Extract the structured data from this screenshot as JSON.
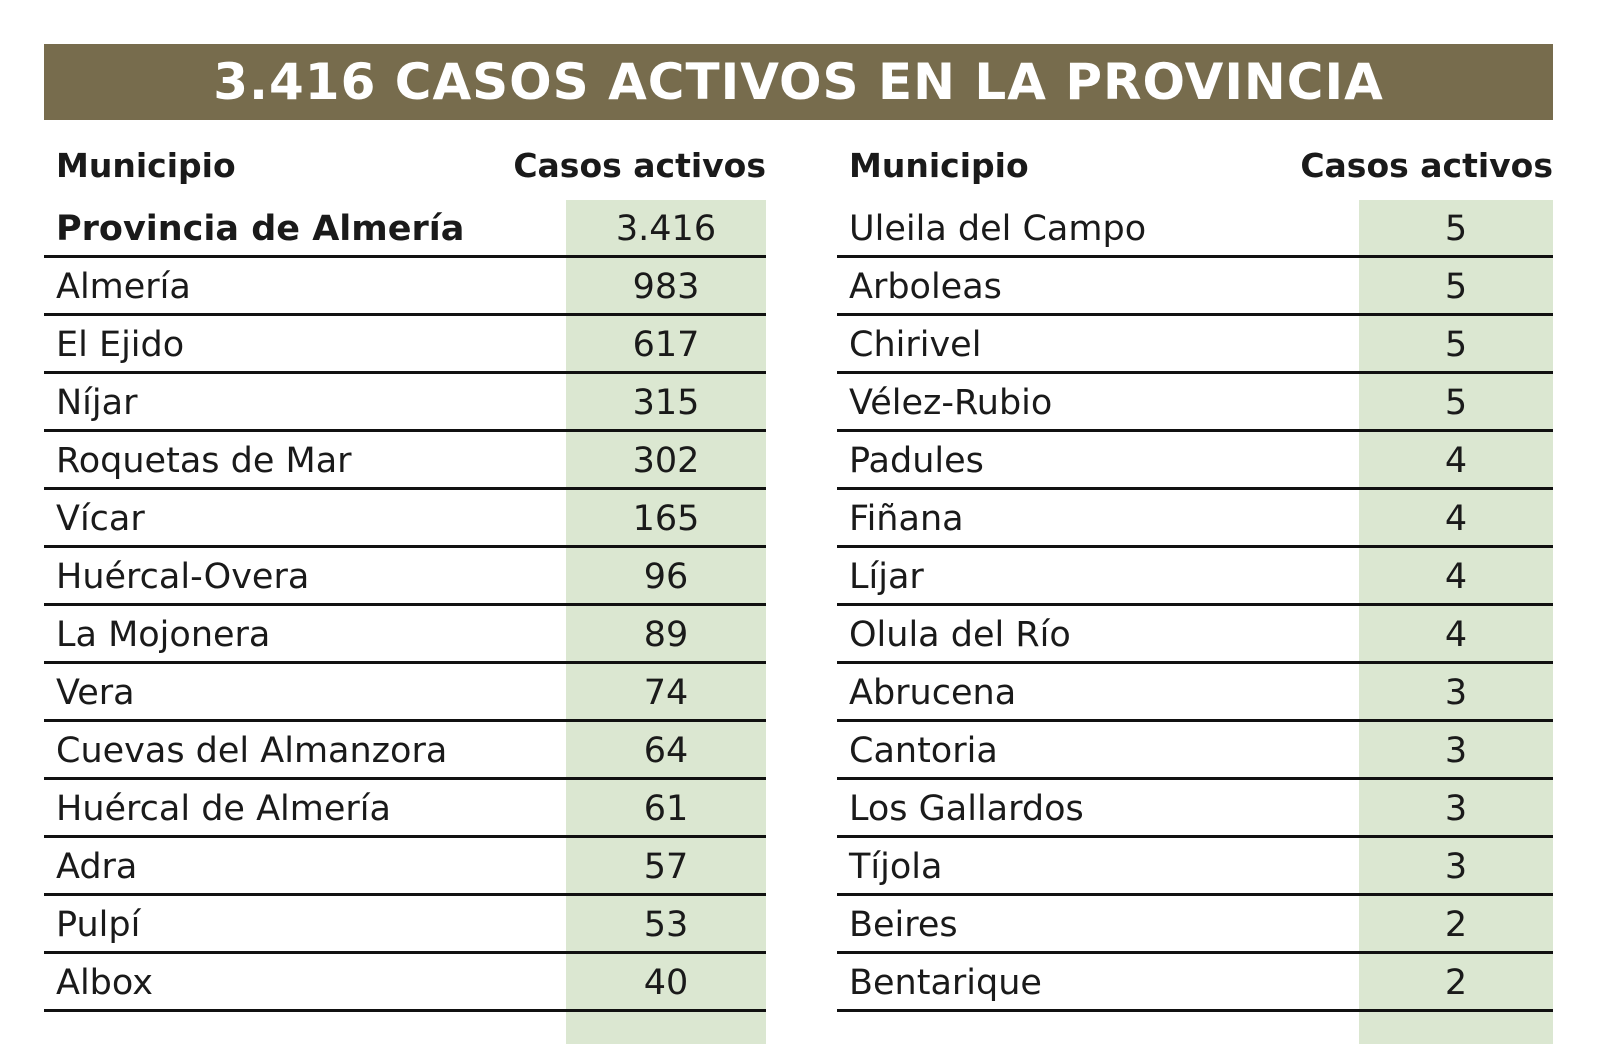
{
  "title": "3.416 CASOS ACTIVOS EN LA PROVINCIA",
  "colors": {
    "banner": "#776c4d",
    "value_column": "#dbe7d1",
    "rule": "#111111"
  },
  "columns": {
    "municipio": "Municipio",
    "casos": "Casos activos"
  },
  "left_rows": [
    {
      "name": "Provincia de Almería",
      "value": "3.416"
    },
    {
      "name": "Almería",
      "value": "983"
    },
    {
      "name": "El Ejido",
      "value": "617"
    },
    {
      "name": "Níjar",
      "value": "315"
    },
    {
      "name": "Roquetas de Mar",
      "value": "302"
    },
    {
      "name": "Vícar",
      "value": "165"
    },
    {
      "name": "Huércal-Overa",
      "value": "96"
    },
    {
      "name": "La Mojonera",
      "value": "89"
    },
    {
      "name": "Vera",
      "value": "74"
    },
    {
      "name": "Cuevas del Almanzora",
      "value": "64"
    },
    {
      "name": "Huércal de Almería",
      "value": "61"
    },
    {
      "name": "Adra",
      "value": "57"
    },
    {
      "name": "Pulpí",
      "value": "53"
    },
    {
      "name": "Albox",
      "value": "40"
    }
  ],
  "right_rows": [
    {
      "name": "Uleila del Campo",
      "value": "5"
    },
    {
      "name": "Arboleas",
      "value": "5"
    },
    {
      "name": "Chirivel",
      "value": "5"
    },
    {
      "name": "Vélez-Rubio",
      "value": "5"
    },
    {
      "name": "Padules",
      "value": "4"
    },
    {
      "name": "Fiñana",
      "value": "4"
    },
    {
      "name": "Líjar",
      "value": "4"
    },
    {
      "name": "Olula del Río",
      "value": "4"
    },
    {
      "name": "Abrucena",
      "value": "3"
    },
    {
      "name": "Cantoria",
      "value": "3"
    },
    {
      "name": "Los Gallardos",
      "value": "3"
    },
    {
      "name": "Tíjola",
      "value": "3"
    },
    {
      "name": "Beires",
      "value": "2"
    },
    {
      "name": "Bentarique",
      "value": "2"
    }
  ]
}
